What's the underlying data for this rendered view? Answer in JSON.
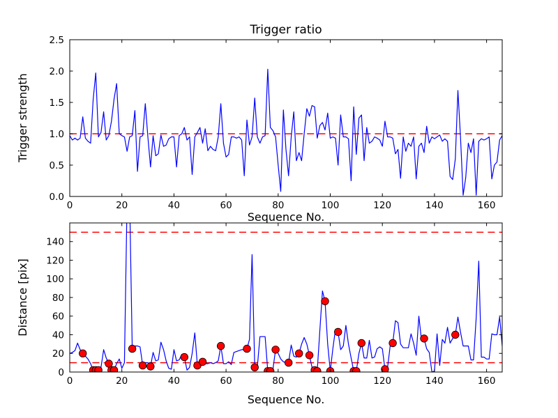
{
  "figure": {
    "title": "Trigger ratio",
    "background": "#ffffff",
    "line_color": "#0000ff",
    "threshold_color": "#ff0000",
    "marker_face_color": "#ff0000",
    "marker_edge_color": "#000000",
    "axis_color": "#000000"
  },
  "chart_data": [
    {
      "type": "line",
      "title": "Trigger ratio",
      "xlabel": "Sequence No.",
      "ylabel": "Trigger strength",
      "xlim": [
        0,
        166
      ],
      "ylim": [
        0,
        2.5
      ],
      "xticks": [
        0,
        20,
        40,
        60,
        80,
        100,
        120,
        140,
        160
      ],
      "xtick_labels": [
        "0",
        "20",
        "40",
        "60",
        "80",
        "100",
        "120",
        "140",
        "160"
      ],
      "yticks": [
        0,
        0.5,
        1.0,
        1.5,
        2.0,
        2.5
      ],
      "ytick_labels": [
        "0.0",
        "0.5",
        "1.0",
        "1.5",
        "2.0",
        "2.5"
      ],
      "grid": false,
      "legend": null,
      "thresholds": [
        1.0
      ],
      "x_start": 0,
      "x_step": 1,
      "y": [
        0.97,
        0.9,
        0.93,
        0.9,
        0.93,
        1.27,
        0.93,
        0.88,
        0.85,
        1.55,
        1.97,
        0.95,
        1.02,
        1.35,
        0.9,
        0.97,
        1.2,
        1.55,
        1.8,
        1.0,
        0.97,
        0.95,
        0.72,
        0.95,
        0.97,
        1.37,
        0.4,
        0.95,
        0.97,
        1.48,
        0.95,
        0.47,
        0.97,
        0.65,
        0.68,
        0.98,
        0.8,
        0.82,
        0.92,
        0.95,
        0.95,
        0.47,
        0.97,
        1.0,
        1.1,
        0.9,
        0.95,
        0.35,
        0.95,
        1.02,
        1.1,
        0.85,
        1.08,
        0.73,
        0.8,
        0.75,
        0.73,
        0.95,
        1.48,
        0.85,
        0.63,
        0.67,
        0.95,
        0.95,
        0.93,
        0.95,
        0.9,
        0.33,
        1.22,
        0.82,
        0.95,
        1.57,
        0.95,
        0.85,
        0.95,
        0.97,
        2.03,
        1.1,
        1.05,
        0.95,
        0.5,
        0.08,
        1.38,
        0.75,
        0.33,
        0.95,
        1.35,
        0.57,
        0.7,
        0.57,
        1.0,
        1.4,
        1.28,
        1.45,
        1.43,
        0.93,
        1.13,
        1.18,
        1.06,
        1.33,
        0.93,
        0.95,
        0.93,
        0.5,
        1.3,
        0.95,
        0.95,
        0.92,
        0.25,
        1.43,
        0.67,
        1.25,
        1.3,
        0.57,
        1.1,
        0.85,
        0.88,
        0.95,
        0.93,
        0.9,
        0.8,
        1.2,
        0.95,
        0.95,
        0.93,
        0.68,
        0.75,
        0.29,
        0.95,
        0.72,
        0.85,
        0.8,
        0.95,
        0.28,
        0.8,
        0.85,
        0.7,
        1.12,
        0.85,
        0.95,
        0.92,
        0.95,
        0.98,
        0.88,
        0.92,
        0.88,
        0.32,
        0.27,
        0.6,
        1.69,
        0.95,
        0.02,
        0.3,
        0.85,
        0.7,
        0.92,
        0.02,
        0.88,
        0.92,
        0.9,
        0.92,
        0.95,
        0.28,
        0.5,
        0.55,
        0.9,
        0.97
      ],
      "markers": []
    },
    {
      "type": "line",
      "title": "",
      "xlabel": "Sequence No.",
      "ylabel": "Distance [pix]",
      "xlim": [
        0,
        166
      ],
      "ylim": [
        0,
        160
      ],
      "xticks": [
        0,
        20,
        40,
        60,
        80,
        100,
        120,
        140,
        160
      ],
      "xtick_labels": [
        "0",
        "20",
        "40",
        "60",
        "80",
        "100",
        "120",
        "140",
        "160"
      ],
      "yticks": [
        0,
        20,
        40,
        60,
        80,
        100,
        120,
        140
      ],
      "ytick_labels": [
        "0",
        "20",
        "40",
        "60",
        "80",
        "100",
        "120",
        "140"
      ],
      "grid": false,
      "legend": null,
      "thresholds": [
        150,
        10
      ],
      "x_start": 0,
      "x_step": 1,
      "y": [
        20,
        21,
        23,
        31,
        24,
        20,
        17,
        14,
        9,
        2,
        2,
        2,
        5,
        24,
        15,
        9,
        2,
        2,
        9,
        14,
        4,
        10,
        185,
        185,
        25,
        28,
        28,
        27,
        7,
        10,
        10,
        6,
        21,
        12,
        13,
        32,
        24,
        12,
        4,
        3,
        24,
        12,
        13,
        19,
        16,
        2,
        5,
        20,
        42,
        7,
        12,
        11,
        9,
        9,
        10,
        9,
        10,
        12,
        28,
        9,
        9,
        11,
        8,
        21,
        22,
        23,
        24,
        24,
        25,
        35,
        126,
        5,
        5,
        38,
        38,
        38,
        1,
        1,
        3,
        24,
        20,
        14,
        11,
        10,
        10,
        29,
        17,
        16,
        20,
        30,
        37,
        30,
        18,
        5,
        2,
        1,
        45,
        87,
        76,
        30,
        1,
        25,
        46,
        43,
        24,
        28,
        50,
        30,
        15,
        1,
        1,
        20,
        31,
        15,
        15,
        34,
        15,
        16,
        25,
        27,
        25,
        3,
        5,
        28,
        31,
        55,
        53,
        30,
        26,
        26,
        26,
        41,
        31,
        18,
        60,
        35,
        36,
        25,
        21,
        0,
        1,
        41,
        7,
        35,
        31,
        48,
        31,
        36,
        40,
        59,
        43,
        28,
        28,
        28,
        13,
        13,
        58,
        119,
        16,
        16,
        14,
        14,
        41,
        40,
        40,
        59,
        28
      ],
      "markers": [
        [
          5,
          20
        ],
        [
          9,
          2
        ],
        [
          10,
          2
        ],
        [
          11,
          2
        ],
        [
          15,
          9
        ],
        [
          16,
          2
        ],
        [
          17,
          2
        ],
        [
          24,
          25
        ],
        [
          28,
          7
        ],
        [
          31,
          6
        ],
        [
          44,
          16
        ],
        [
          49,
          7
        ],
        [
          51,
          11
        ],
        [
          58,
          28
        ],
        [
          68,
          25
        ],
        [
          71,
          5
        ],
        [
          76,
          1
        ],
        [
          77,
          1
        ],
        [
          79,
          24
        ],
        [
          84,
          10
        ],
        [
          88,
          20
        ],
        [
          92,
          18
        ],
        [
          94,
          2
        ],
        [
          95,
          1
        ],
        [
          98,
          76
        ],
        [
          100,
          1
        ],
        [
          103,
          43
        ],
        [
          109,
          1
        ],
        [
          110,
          1
        ],
        [
          112,
          31
        ],
        [
          121,
          3
        ],
        [
          124,
          31
        ],
        [
          136,
          36
        ],
        [
          148,
          40
        ]
      ]
    }
  ]
}
